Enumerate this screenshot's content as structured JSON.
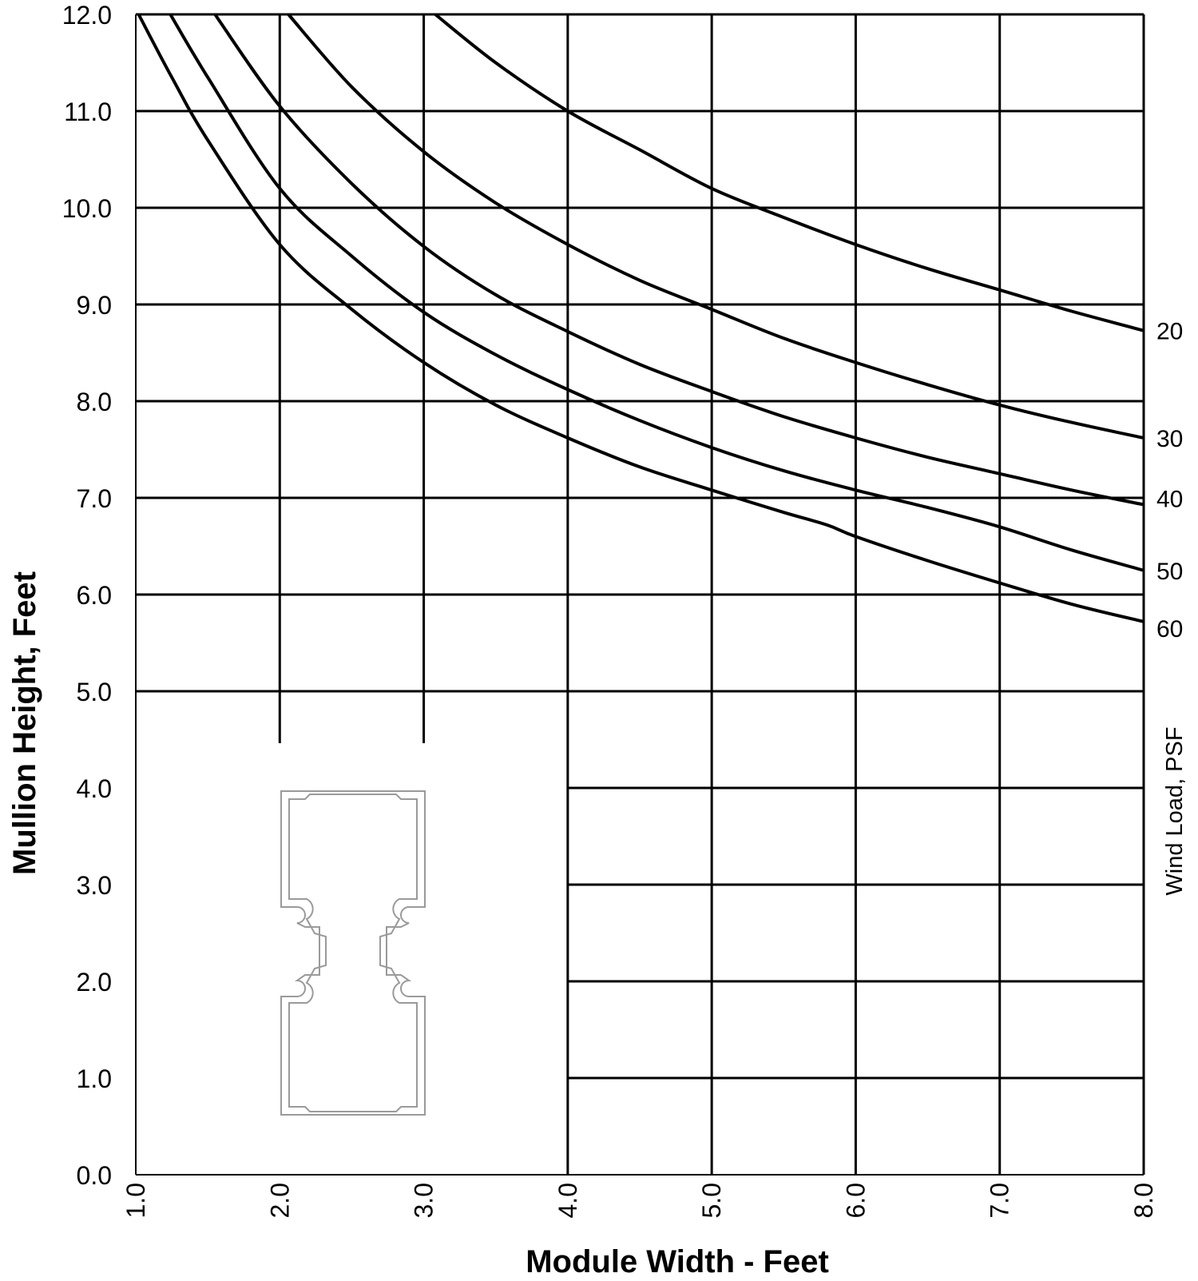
{
  "chart_data": {
    "type": "line",
    "title": "",
    "xlabel": "Module Width - Feet",
    "ylabel": "Mullion Height, Feet",
    "secondary_label": "Wind Load, PSF",
    "xlim": [
      1.0,
      8.0
    ],
    "ylim": [
      0.0,
      12.0
    ],
    "x_ticks": [
      "1.0",
      "2.0",
      "3.0",
      "4.0",
      "5.0",
      "6.0",
      "7.0",
      "8.0"
    ],
    "y_ticks": [
      "0.0",
      "1.0",
      "2.0",
      "3.0",
      "4.0",
      "5.0",
      "6.0",
      "7.0",
      "8.0",
      "9.0",
      "10.0",
      "11.0",
      "12.0"
    ],
    "grid": true,
    "inset": "mullion cross-section profile drawing",
    "series": [
      {
        "name": "20",
        "x": [
          3.08,
          3.5,
          4.0,
          4.5,
          5.0,
          5.5,
          6.0,
          6.5,
          7.0,
          7.5,
          8.0
        ],
        "y": [
          12.0,
          11.5,
          11.0,
          10.6,
          10.2,
          9.9,
          9.62,
          9.37,
          9.15,
          8.93,
          8.73
        ]
      },
      {
        "name": "30",
        "x": [
          2.06,
          2.5,
          3.0,
          3.5,
          4.0,
          4.5,
          5.0,
          5.5,
          6.0,
          6.5,
          7.0,
          7.5,
          8.0
        ],
        "y": [
          12.0,
          11.25,
          10.58,
          10.05,
          9.62,
          9.25,
          8.95,
          8.65,
          8.4,
          8.17,
          7.96,
          7.78,
          7.62
        ]
      },
      {
        "name": "40",
        "x": [
          1.55,
          2.0,
          2.5,
          3.0,
          3.5,
          4.0,
          4.5,
          5.0,
          5.5,
          6.0,
          6.5,
          7.0,
          7.5,
          8.0
        ],
        "y": [
          12.0,
          11.05,
          10.25,
          9.6,
          9.1,
          8.72,
          8.38,
          8.1,
          7.84,
          7.62,
          7.42,
          7.25,
          7.08,
          6.93
        ]
      },
      {
        "name": "50",
        "x": [
          1.24,
          1.5,
          2.0,
          2.5,
          3.0,
          3.5,
          4.0,
          4.5,
          5.0,
          5.5,
          6.0,
          6.5,
          7.0,
          7.5,
          8.0
        ],
        "y": [
          12.0,
          11.35,
          10.2,
          9.5,
          8.92,
          8.48,
          8.12,
          7.8,
          7.52,
          7.28,
          7.08,
          6.9,
          6.7,
          6.46,
          6.25
        ]
      },
      {
        "name": "60",
        "x": [
          1.02,
          1.25,
          1.5,
          2.0,
          2.5,
          3.0,
          3.5,
          4.0,
          4.5,
          5.0,
          5.5,
          5.8,
          6.0,
          6.5,
          7.0,
          7.5,
          8.0
        ],
        "y": [
          12.0,
          11.35,
          10.7,
          9.62,
          8.95,
          8.4,
          7.96,
          7.62,
          7.32,
          7.08,
          6.85,
          6.72,
          6.6,
          6.35,
          6.12,
          5.9,
          5.72
        ]
      }
    ]
  }
}
